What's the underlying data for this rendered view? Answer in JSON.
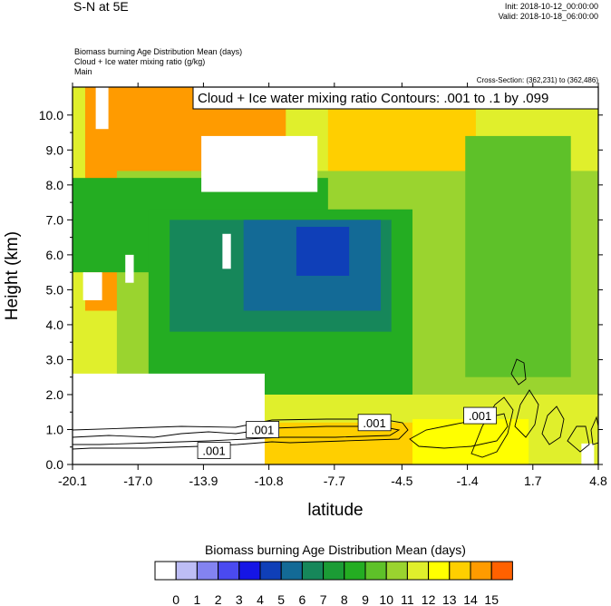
{
  "header": {
    "title": "S-N at 5E",
    "init": "Init: 2018-10-12_00:00:00",
    "valid": "Valid: 2018-10-18_06:00:00"
  },
  "fields": {
    "line1": "Biomass burning Age Distribution Mean   (days)",
    "line2": "Cloud + Ice water mixing ratio   (g/kg)",
    "line3": "Main"
  },
  "cross_section": "Cross-Section: (362,231) to (362,486)",
  "contour_info": "Cloud + Ice water mixing ratio Contours: .001 to .1 by .099",
  "colors": {
    "levels": [
      "#ffffff",
      "#bdbdf5",
      "#8383f0",
      "#4a4af0",
      "#1515e6",
      "#0f3fb8",
      "#136a96",
      "#16875a",
      "#1b9c35",
      "#24ad22",
      "#5ec129",
      "#9ad42f",
      "#e0ef2c",
      "#ffff00",
      "#ffcf00",
      "#ff9b00",
      "#ff6100",
      "#ff2200"
    ]
  },
  "chart_data": {
    "type": "heatmap",
    "xlabel": "latitude",
    "ylabel": "Height (km)",
    "xlim": [
      -20.1,
      4.8
    ],
    "ylim": [
      0.0,
      10.8
    ],
    "xticks": [
      "-20.1",
      "-17.0",
      "-13.9",
      "-10.8",
      "-7.7",
      "-4.5",
      "-1.4",
      "1.7",
      "4.8"
    ],
    "yticks": [
      "0.0",
      "1.0",
      "2.0",
      "3.0",
      "4.0",
      "5.0",
      "6.0",
      "7.0",
      "8.0",
      "9.0",
      "10.0"
    ],
    "colorbar": {
      "title": "Biomass burning Age Distribution Mean  (days)",
      "labels": [
        "0",
        "1",
        "2",
        "3",
        "4",
        "5",
        "6",
        "7",
        "8",
        "9",
        "10",
        "11",
        "12",
        "13",
        "14",
        "15"
      ]
    },
    "regions": [
      {
        "lat": [
          -20.1,
          4.8
        ],
        "z": [
          0.0,
          10.8
        ],
        "value": 11.5
      },
      {
        "lat": [
          -19.5,
          -10.0
        ],
        "z": [
          4.4,
          10.8
        ],
        "value": 14.5
      },
      {
        "lat": [
          -8.0,
          -1.0
        ],
        "z": [
          7.6,
          10.8
        ],
        "value": 13.5
      },
      {
        "lat": [
          -18.0,
          4.8
        ],
        "z": [
          2.0,
          8.4
        ],
        "value": 10.5
      },
      {
        "lat": [
          -20.1,
          -8.0
        ],
        "z": [
          5.5,
          8.2
        ],
        "value": 8.5
      },
      {
        "lat": [
          -16.5,
          -4.0
        ],
        "z": [
          2.0,
          7.3
        ],
        "value": 8.5
      },
      {
        "lat": [
          -15.5,
          -5.0
        ],
        "z": [
          3.8,
          7.0
        ],
        "value": 6.5
      },
      {
        "lat": [
          -12.0,
          -5.5
        ],
        "z": [
          4.4,
          7.0
        ],
        "value": 5.5
      },
      {
        "lat": [
          -9.5,
          -7.0
        ],
        "z": [
          5.4,
          6.8
        ],
        "value": 4.5
      },
      {
        "lat": [
          -1.5,
          3.5
        ],
        "z": [
          2.5,
          9.4
        ],
        "value": 9.5
      },
      {
        "lat": [
          -11.0,
          -4.0
        ],
        "z": [
          0.0,
          1.2
        ],
        "value": 13.5
      },
      {
        "lat": [
          -4.0,
          1.5
        ],
        "z": [
          0.0,
          1.3
        ],
        "value": 12.5
      },
      {
        "lat": [
          -20.1,
          -11.0
        ],
        "z": [
          0.0,
          2.6
        ],
        "value": 0.0
      },
      {
        "lat": [
          -14.0,
          -8.5
        ],
        "z": [
          7.8,
          9.4
        ],
        "value": 0.0
      },
      {
        "lat": [
          -19.0,
          -18.4
        ],
        "z": [
          9.6,
          10.8
        ],
        "value": 0.0
      },
      {
        "lat": [
          -19.6,
          -18.7
        ],
        "z": [
          4.7,
          5.5
        ],
        "value": 0.0
      },
      {
        "lat": [
          -17.6,
          -17.2
        ],
        "z": [
          5.2,
          6.0
        ],
        "value": 0.0
      },
      {
        "lat": [
          -13.0,
          -12.6
        ],
        "z": [
          5.6,
          6.6
        ],
        "value": 0.0
      },
      {
        "lat": [
          4.0,
          4.6
        ],
        "z": [
          0.0,
          0.6
        ],
        "value": 0.0
      }
    ],
    "contour_labels": [
      {
        "text": ".001",
        "lat": -13.4,
        "z": 0.4
      },
      {
        "text": ".001",
        "lat": -11.1,
        "z": 1.0
      },
      {
        "text": ".001",
        "lat": -5.8,
        "z": 1.2
      },
      {
        "text": ".001",
        "lat": -0.8,
        "z": 1.4
      }
    ]
  }
}
